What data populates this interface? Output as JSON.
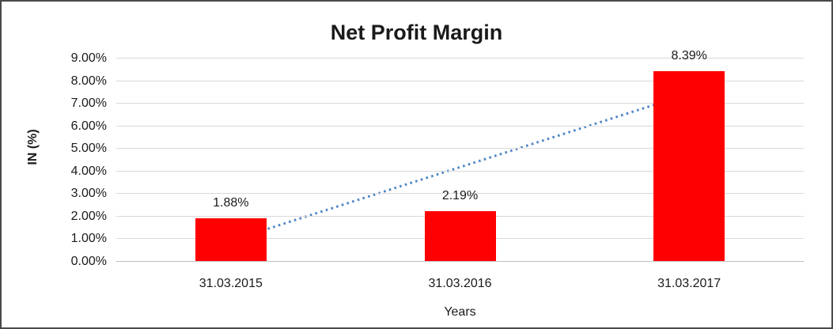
{
  "chart_data": {
    "type": "bar",
    "title": "Net Profit Margin",
    "categories": [
      "31.03.2015",
      "31.03.2016",
      "31.03.2017"
    ],
    "values": [
      1.88,
      2.19,
      8.39
    ],
    "data_labels": [
      "1.88%",
      "2.19%",
      "8.39%"
    ],
    "xlabel": "Years",
    "ylabel": "IN (%)",
    "ylim": [
      0,
      9
    ],
    "ytick_step": 1,
    "ytick_labels": [
      "0.00%",
      "1.00%",
      "2.00%",
      "3.00%",
      "4.00%",
      "5.00%",
      "6.00%",
      "7.00%",
      "8.00%",
      "9.00%"
    ],
    "grid": "horizontal-only",
    "legend": "none",
    "bar_color": "#ff0000",
    "gridline_color": "#d9d9d9",
    "trendline": {
      "type": "linear",
      "style": "dotted",
      "color": "#4f86c6",
      "start_value": 0.9,
      "end_value": 7.41
    }
  }
}
